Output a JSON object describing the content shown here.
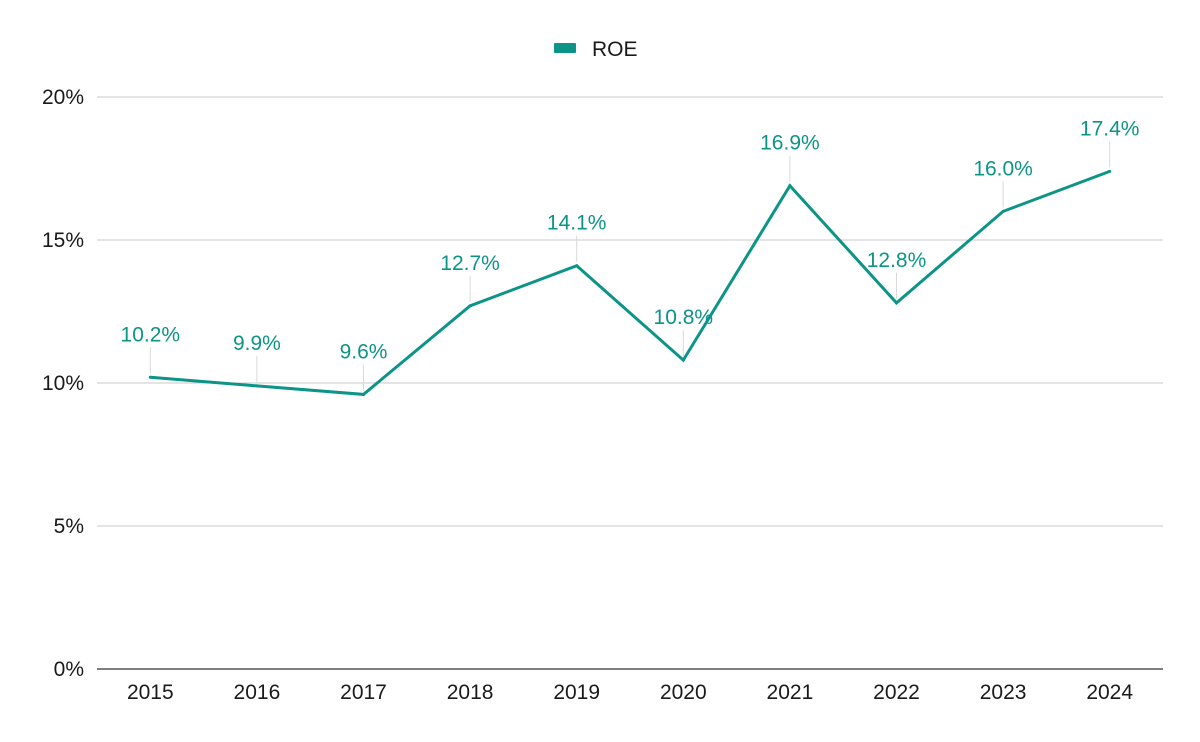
{
  "chart_data": {
    "type": "line",
    "title": "",
    "xlabel": "",
    "ylabel": "",
    "categories": [
      "2015",
      "2016",
      "2017",
      "2018",
      "2019",
      "2020",
      "2021",
      "2022",
      "2023",
      "2024"
    ],
    "series": [
      {
        "name": "ROE",
        "values": [
          10.2,
          9.9,
          9.6,
          12.7,
          14.1,
          10.8,
          16.9,
          12.8,
          16.0,
          17.4
        ],
        "labels": [
          "10.2%",
          "9.9%",
          "9.6%",
          "12.7%",
          "14.1%",
          "10.8%",
          "16.9%",
          "12.8%",
          "16.0%",
          "17.4%"
        ],
        "color": "#0d9488"
      }
    ],
    "ylim": [
      0,
      20
    ],
    "y_ticks": [
      0,
      5,
      10,
      15,
      20
    ],
    "y_tick_labels": [
      "0%",
      "5%",
      "10%",
      "15%",
      "20%"
    ],
    "grid": true,
    "legend_position": "top-center"
  }
}
